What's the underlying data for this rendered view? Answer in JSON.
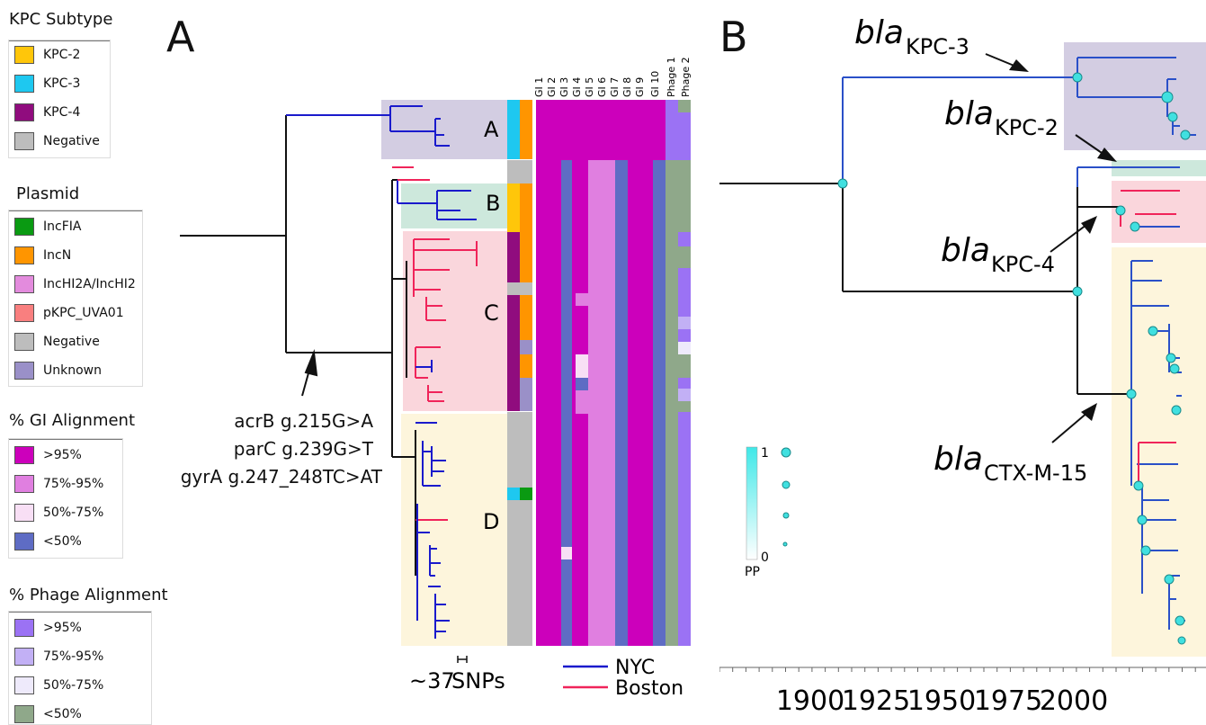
{
  "panel_a_letter": "A",
  "panel_b_letter": "B",
  "legends": {
    "kpc": {
      "title": "KPC Subtype",
      "items": [
        {
          "label": "KPC-2",
          "color": "#FFC60A"
        },
        {
          "label": "KPC-3",
          "color": "#1EC8F0"
        },
        {
          "label": "KPC-4",
          "color": "#900C7E"
        },
        {
          "label": "Negative",
          "color": "#BDBDBD"
        }
      ]
    },
    "plasmid": {
      "title": "Plasmid",
      "items": [
        {
          "label": "IncFIA",
          "color": "#0A9A12"
        },
        {
          "label": "IncN",
          "color": "#FF9500"
        },
        {
          "label": "IncHI2A/IncHI2",
          "color": "#E38BDD"
        },
        {
          "label": "pKPC_UVA01",
          "color": "#F97F7F"
        },
        {
          "label": "Negative",
          "color": "#BDBDBD"
        },
        {
          "label": "Unknown",
          "color": "#9A90C8"
        }
      ]
    },
    "gi": {
      "title": "% GI Alignment",
      "items": [
        {
          "label": ">95%",
          "color": "#CC00BB"
        },
        {
          "label": "75%-95%",
          "color": "#E07FE0"
        },
        {
          "label": "50%-75%",
          "color": "#F8DFF5"
        },
        {
          "label": "<50%",
          "color": "#5E6CC4"
        }
      ]
    },
    "phage": {
      "title": "% Phage Alignment",
      "items": [
        {
          "label": ">95%",
          "color": "#9B72F4"
        },
        {
          "label": "75%-95%",
          "color": "#C2B0F5"
        },
        {
          "label": "50%-75%",
          "color": "#EEEAFB"
        },
        {
          "label": "<50%",
          "color": "#8FA88A"
        }
      ]
    }
  },
  "clades": [
    "A",
    "B",
    "C",
    "D"
  ],
  "mutations": [
    "acrB g.215G>A",
    "parC g.239G>T",
    "gyrA g.247_248TC>AT"
  ],
  "heatmap_columns": [
    "GI 1",
    "GI 2",
    "GI 3",
    "GI 4",
    "GI 5",
    "GI 6",
    "GI 7",
    "GI 8",
    "GI 9",
    "GI 10",
    "Phage 1",
    "Phage 2"
  ],
  "scale_bar": {
    "prefix": "~37",
    "label": "SNPs"
  },
  "location_legend": [
    {
      "label": "NYC",
      "color": "#1A1ACC"
    },
    {
      "label": "Boston",
      "color": "#F0245A"
    }
  ],
  "gene_labels": [
    {
      "italic": "bla",
      "sub": "KPC-3"
    },
    {
      "italic": "bla",
      "sub": "KPC-2"
    },
    {
      "italic": "bla",
      "sub": "KPC-4"
    },
    {
      "italic": "bla",
      "sub": "CTX-M-15"
    }
  ],
  "pp_legend": {
    "max": "1",
    "min": "0",
    "label": "PP"
  },
  "time_axis": {
    "ticks": [
      "1900",
      "1925",
      "1950",
      "1975",
      "2000"
    ]
  }
}
